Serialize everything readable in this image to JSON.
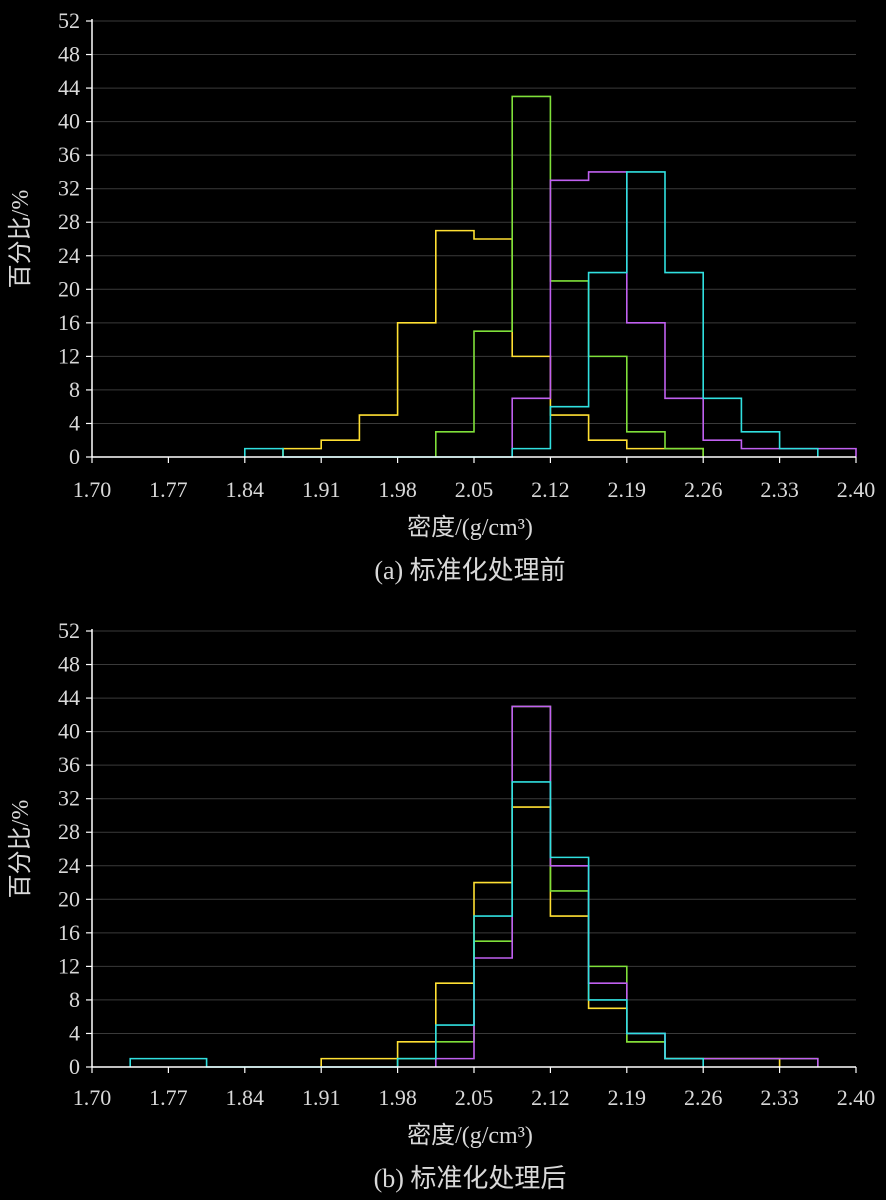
{
  "chart_data": [
    {
      "type": "histogram",
      "caption": "(a) 标准化处理前",
      "xlabel": "密度/(g/cm³)",
      "ylabel": "百分比/%",
      "xlim": [
        1.7,
        2.4
      ],
      "ylim": [
        0,
        52
      ],
      "xticks": [
        "1.70",
        "1.77",
        "1.84",
        "1.91",
        "1.98",
        "2.05",
        "2.12",
        "2.19",
        "2.26",
        "2.33",
        "2.40"
      ],
      "yticks": [
        "0",
        "4",
        "8",
        "12",
        "16",
        "20",
        "24",
        "28",
        "32",
        "36",
        "40",
        "44",
        "48",
        "52"
      ],
      "grid": true,
      "bin_edges": [
        1.7,
        1.735,
        1.77,
        1.805,
        1.84,
        1.875,
        1.91,
        1.945,
        1.98,
        2.015,
        2.05,
        2.085,
        2.12,
        2.155,
        2.19,
        2.225,
        2.26,
        2.295,
        2.33,
        2.365,
        2.4
      ],
      "series": [
        {
          "color": "#ffe033",
          "values": [
            0,
            0,
            0,
            0,
            0,
            1,
            2,
            5,
            16,
            27,
            26,
            12,
            5,
            2,
            1,
            1,
            0,
            0,
            0,
            0
          ]
        },
        {
          "color": "#7fe03a",
          "values": [
            0,
            0,
            0,
            0,
            0,
            0,
            0,
            0,
            0,
            3,
            15,
            43,
            21,
            12,
            3,
            1,
            0,
            0,
            0,
            0
          ]
        },
        {
          "color": "#c060f0",
          "values": [
            0,
            0,
            0,
            0,
            0,
            0,
            0,
            0,
            0,
            0,
            0,
            7,
            33,
            34,
            16,
            7,
            2,
            1,
            1,
            1
          ]
        },
        {
          "color": "#30e0e0",
          "values": [
            0,
            0,
            0,
            0,
            1,
            0,
            0,
            0,
            0,
            0,
            0,
            1,
            6,
            22,
            34,
            22,
            7,
            3,
            1,
            0
          ]
        }
      ]
    },
    {
      "type": "histogram",
      "caption": "(b) 标准化处理后",
      "xlabel": "密度/(g/cm³)",
      "ylabel": "百分比/%",
      "xlim": [
        1.7,
        2.4
      ],
      "ylim": [
        0,
        52
      ],
      "xticks": [
        "1.70",
        "1.77",
        "1.84",
        "1.91",
        "1.98",
        "2.05",
        "2.12",
        "2.19",
        "2.26",
        "2.33",
        "2.40"
      ],
      "yticks": [
        "0",
        "4",
        "8",
        "12",
        "16",
        "20",
        "24",
        "28",
        "32",
        "36",
        "40",
        "44",
        "48",
        "52"
      ],
      "grid": true,
      "bin_edges": [
        1.7,
        1.735,
        1.77,
        1.805,
        1.84,
        1.875,
        1.91,
        1.945,
        1.98,
        2.015,
        2.05,
        2.085,
        2.12,
        2.155,
        2.19,
        2.225,
        2.26,
        2.295,
        2.33,
        2.365,
        2.4
      ],
      "series": [
        {
          "color": "#ffe033",
          "values": [
            0,
            0,
            0,
            0,
            0,
            0,
            1,
            1,
            3,
            10,
            22,
            31,
            18,
            7,
            3,
            1,
            1,
            1,
            0,
            0
          ]
        },
        {
          "color": "#7fe03a",
          "values": [
            0,
            0,
            0,
            0,
            0,
            0,
            0,
            0,
            1,
            3,
            15,
            43,
            21,
            12,
            3,
            1,
            1,
            1,
            1,
            0
          ]
        },
        {
          "color": "#c060f0",
          "values": [
            0,
            0,
            0,
            0,
            0,
            0,
            0,
            0,
            0,
            1,
            13,
            43,
            24,
            10,
            4,
            1,
            1,
            1,
            1,
            0
          ]
        },
        {
          "color": "#30e0e0",
          "values": [
            0,
            1,
            1,
            0,
            0,
            0,
            0,
            0,
            1,
            5,
            18,
            34,
            25,
            8,
            4,
            1,
            0,
            0,
            0,
            0
          ]
        }
      ]
    }
  ]
}
